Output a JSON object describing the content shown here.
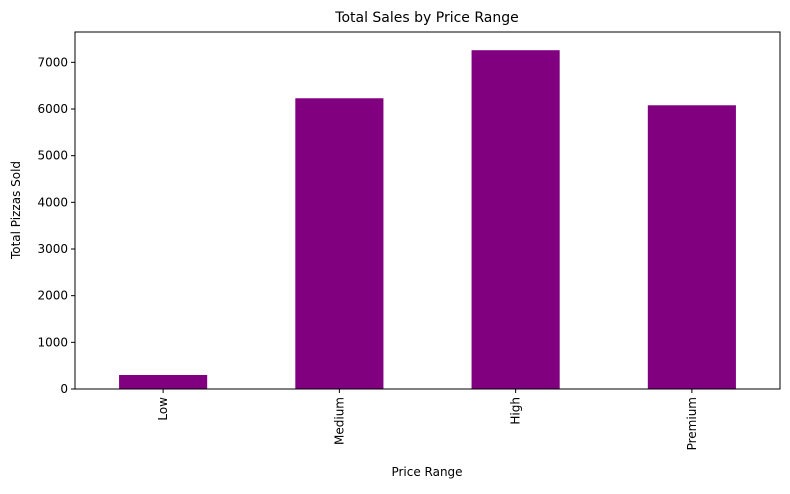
{
  "chart_data": {
    "type": "bar",
    "title": "Total Sales by Price Range",
    "xlabel": "Price Range",
    "ylabel": "Total Pizzas Sold",
    "categories": [
      "Low",
      "Medium",
      "High",
      "Premium"
    ],
    "values": [
      300,
      6230,
      7260,
      6080
    ],
    "ylim": [
      0,
      7650
    ],
    "yticks": [
      0,
      1000,
      2000,
      3000,
      4000,
      5000,
      6000,
      7000
    ],
    "bar_color": "#800080",
    "grid": false,
    "legend": "none"
  }
}
